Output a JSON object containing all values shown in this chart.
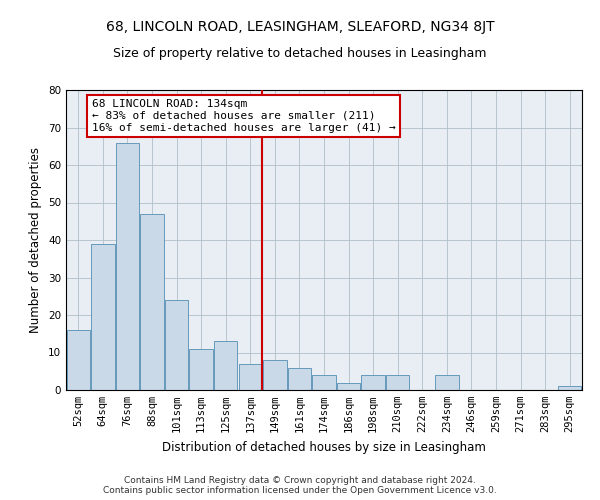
{
  "title1": "68, LINCOLN ROAD, LEASINGHAM, SLEAFORD, NG34 8JT",
  "title2": "Size of property relative to detached houses in Leasingham",
  "xlabel": "Distribution of detached houses by size in Leasingham",
  "ylabel": "Number of detached properties",
  "categories": [
    "52sqm",
    "64sqm",
    "76sqm",
    "88sqm",
    "101sqm",
    "113sqm",
    "125sqm",
    "137sqm",
    "149sqm",
    "161sqm",
    "174sqm",
    "186sqm",
    "198sqm",
    "210sqm",
    "222sqm",
    "234sqm",
    "246sqm",
    "259sqm",
    "271sqm",
    "283sqm",
    "295sqm"
  ],
  "values": [
    16,
    39,
    66,
    47,
    24,
    11,
    13,
    7,
    8,
    6,
    4,
    2,
    4,
    4,
    0,
    4,
    0,
    0,
    0,
    0,
    1
  ],
  "bar_color": "#c9d9e8",
  "bar_edge_color": "#6699bb",
  "vline_index": 7,
  "vline_color": "#cc0000",
  "annotation_text": "68 LINCOLN ROAD: 134sqm\n← 83% of detached houses are smaller (211)\n16% of semi-detached houses are larger (41) →",
  "annotation_box_color": "#ffffff",
  "annotation_box_edge": "#cc0000",
  "ylim": [
    0,
    80
  ],
  "yticks": [
    0,
    10,
    20,
    30,
    40,
    50,
    60,
    70,
    80
  ],
  "grid_color": "#b0bec8",
  "bg_color": "#e8eef4",
  "footnote": "Contains HM Land Registry data © Crown copyright and database right 2024.\nContains public sector information licensed under the Open Government Licence v3.0.",
  "title1_fontsize": 10,
  "title2_fontsize": 9,
  "xlabel_fontsize": 8.5,
  "ylabel_fontsize": 8.5,
  "tick_fontsize": 7.5,
  "annot_fontsize": 8,
  "footnote_fontsize": 6.5
}
